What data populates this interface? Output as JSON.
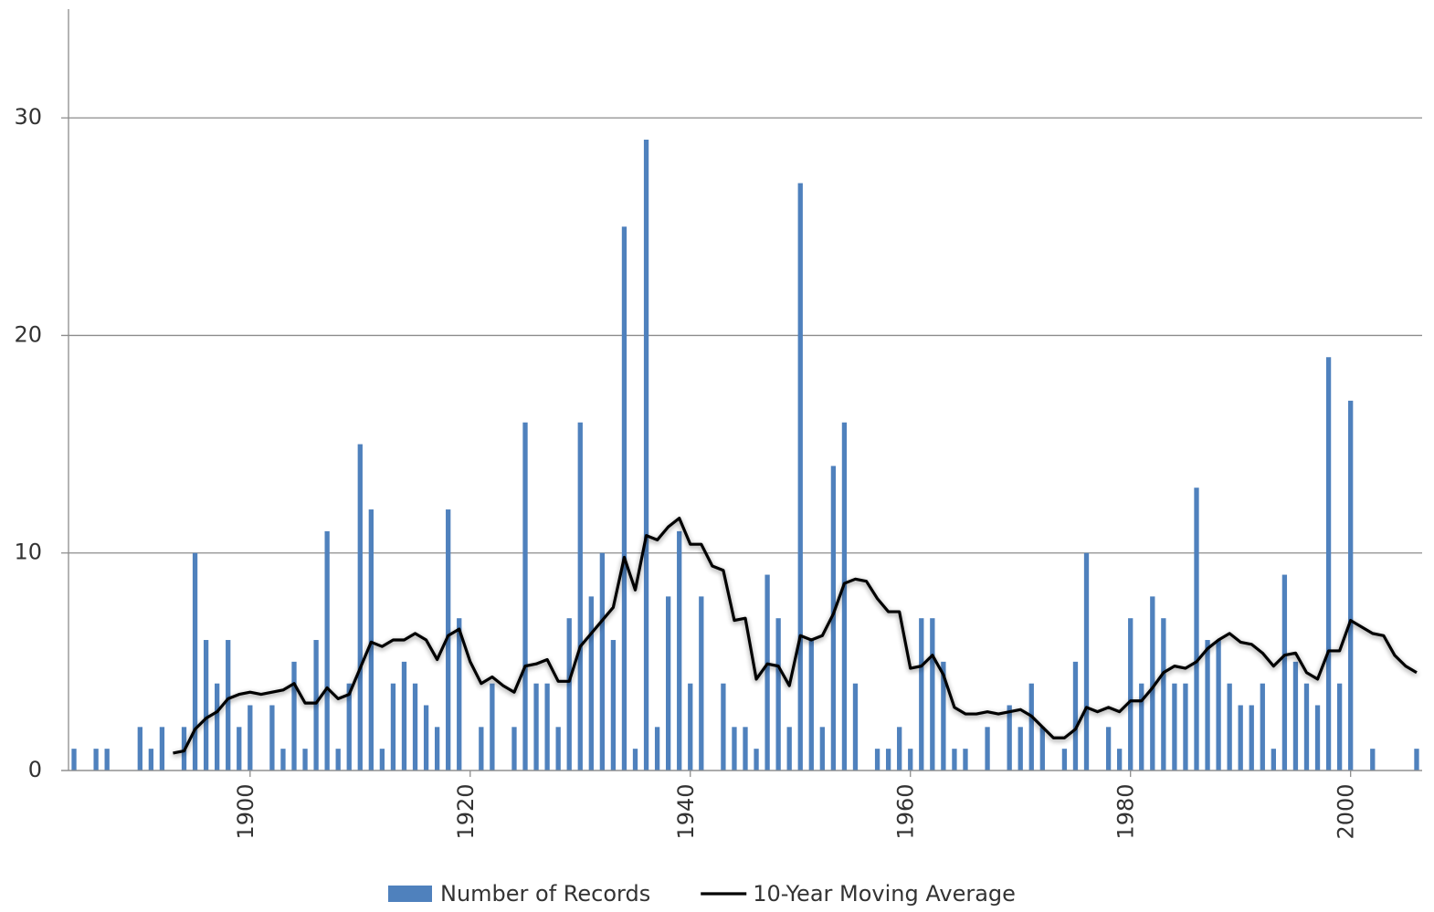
{
  "chart_data": {
    "type": "bar_line",
    "x": [
      1884,
      1885,
      1886,
      1887,
      1888,
      1889,
      1890,
      1891,
      1892,
      1893,
      1894,
      1895,
      1896,
      1897,
      1898,
      1899,
      1900,
      1901,
      1902,
      1903,
      1904,
      1905,
      1906,
      1907,
      1908,
      1909,
      1910,
      1911,
      1912,
      1913,
      1914,
      1915,
      1916,
      1917,
      1918,
      1919,
      1920,
      1921,
      1922,
      1923,
      1924,
      1925,
      1926,
      1927,
      1928,
      1929,
      1930,
      1931,
      1932,
      1933,
      1934,
      1935,
      1936,
      1937,
      1938,
      1939,
      1940,
      1941,
      1942,
      1943,
      1944,
      1945,
      1946,
      1947,
      1948,
      1949,
      1950,
      1951,
      1952,
      1953,
      1954,
      1955,
      1956,
      1957,
      1958,
      1959,
      1960,
      1961,
      1962,
      1963,
      1964,
      1965,
      1966,
      1967,
      1968,
      1969,
      1970,
      1971,
      1972,
      1973,
      1974,
      1975,
      1976,
      1977,
      1978,
      1979,
      1980,
      1981,
      1982,
      1983,
      1984,
      1985,
      1986,
      1987,
      1988,
      1989,
      1990,
      1991,
      1992,
      1993,
      1994,
      1995,
      1996,
      1997,
      1998,
      1999,
      2000,
      2001,
      2002,
      2003,
      2004,
      2005,
      2006
    ],
    "series": [
      {
        "name": "Number of Records",
        "kind": "bar",
        "color": "#4f81bd",
        "values": [
          1,
          0,
          1,
          1,
          0,
          0,
          2,
          1,
          2,
          0,
          2,
          10,
          6,
          4,
          6,
          2,
          3,
          0,
          3,
          1,
          5,
          1,
          6,
          11,
          1,
          4,
          15,
          12,
          1,
          4,
          5,
          4,
          3,
          2,
          12,
          7,
          0,
          2,
          4,
          0,
          2,
          16,
          4,
          4,
          2,
          7,
          16,
          8,
          10,
          6,
          25,
          1,
          29,
          2,
          8,
          11,
          4,
          8,
          0,
          4,
          2,
          2,
          1,
          9,
          7,
          2,
          27,
          6,
          2,
          14,
          16,
          4,
          0,
          1,
          1,
          2,
          1,
          7,
          7,
          5,
          1,
          1,
          0,
          2,
          0,
          3,
          2,
          4,
          2,
          0,
          1,
          5,
          10,
          0,
          2,
          1,
          7,
          4,
          8,
          7,
          4,
          4,
          13,
          6,
          6,
          4,
          3,
          3,
          4,
          1,
          9,
          5,
          4,
          3,
          19,
          4,
          17,
          0,
          1,
          0,
          0,
          0,
          1
        ]
      },
      {
        "name": "10-Year Moving Average",
        "kind": "line",
        "color": "#000000",
        "values": [
          null,
          null,
          null,
          null,
          null,
          null,
          null,
          null,
          null,
          0.8,
          0.9,
          1.9,
          2.4,
          2.7,
          3.3,
          3.5,
          3.6,
          3.5,
          3.6,
          3.7,
          4.0,
          3.1,
          3.1,
          3.8,
          3.3,
          3.5,
          4.7,
          5.9,
          5.7,
          6.0,
          6.0,
          6.3,
          6.0,
          5.1,
          6.2,
          6.5,
          5.0,
          4.0,
          4.3,
          3.9,
          3.6,
          4.8,
          4.9,
          5.1,
          4.1,
          4.1,
          5.7,
          6.3,
          6.9,
          7.5,
          9.8,
          8.3,
          10.8,
          10.6,
          11.2,
          11.6,
          10.4,
          10.4,
          9.4,
          9.2,
          6.9,
          7.0,
          4.2,
          4.9,
          4.8,
          3.9,
          6.2,
          6.0,
          6.2,
          7.2,
          8.6,
          8.8,
          8.7,
          7.9,
          7.3,
          7.3,
          4.7,
          4.8,
          5.3,
          4.4,
          2.9,
          2.6,
          2.6,
          2.7,
          2.6,
          2.7,
          2.8,
          2.5,
          2.0,
          1.5,
          1.5,
          1.9,
          2.9,
          2.7,
          2.9,
          2.7,
          3.2,
          3.2,
          3.8,
          4.5,
          4.8,
          4.7,
          5.0,
          5.6,
          6.0,
          6.3,
          5.9,
          5.8,
          5.4,
          4.8,
          5.3,
          5.4,
          4.5,
          4.2,
          5.5,
          5.5,
          6.9,
          6.6,
          6.3,
          6.2,
          5.3,
          4.8,
          4.5
        ]
      }
    ],
    "xlim": [
      1883.5,
      2006.5
    ],
    "xticks": [
      1900,
      1920,
      1940,
      1960,
      1980,
      2000
    ],
    "ylim": [
      0,
      35
    ],
    "yticks": [
      0,
      10,
      20,
      30
    ],
    "grid": true,
    "legend": "bottom"
  }
}
